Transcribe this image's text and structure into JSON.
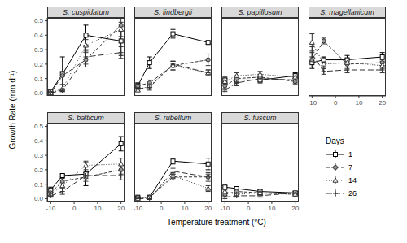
{
  "y_label": "Growth Rate (mm d⁻¹)",
  "x_label": "Temperature treatment (°C)",
  "legend_title": "Days",
  "chart_data": [
    {
      "type": "line",
      "title": "S. cuspidatum",
      "tick_labels": "y",
      "x": [
        -10,
        -5,
        5,
        20
      ],
      "xlim": [
        -11.5,
        21.5
      ],
      "xticks": [
        -10,
        0,
        10,
        20
      ],
      "ylim": [
        -0.02,
        0.52
      ],
      "yticks": [
        {
          "value": 0,
          "label": "0.0"
        },
        {
          "value": 0.1,
          "label": "0.1"
        },
        {
          "value": 0.2,
          "label": "0.2"
        },
        {
          "value": 0.3,
          "label": "0.3"
        },
        {
          "value": 0.4,
          "label": "0.4"
        },
        {
          "value": 0.5,
          "label": "0.5"
        }
      ],
      "series": [
        {
          "name": "1",
          "color": "#000000",
          "marker": "square",
          "line_style": "solid",
          "values": [
            0.01,
            0.13,
            0.4,
            0.36
          ],
          "errors": [
            0.01,
            0.12,
            0.07,
            0.1
          ]
        },
        {
          "name": "7",
          "color": "#333333",
          "marker": "circle",
          "line_style": "dashed",
          "values": [
            0.0,
            0.12,
            0.23,
            0.47
          ],
          "errors": [
            0.01,
            0.03,
            0.05,
            0.08
          ]
        },
        {
          "name": "14",
          "color": "#333333",
          "marker": "triangle",
          "line_style": "dotted",
          "values": [
            0.0,
            0.03,
            0.33,
            0.44
          ],
          "errors": [
            0.01,
            0.03,
            0.04,
            0.05
          ]
        },
        {
          "name": "26",
          "color": "#333333",
          "marker": "plus",
          "line_style": "longdash",
          "values": [
            0.0,
            0.02,
            0.25,
            0.28
          ],
          "errors": [
            0.01,
            0.01,
            0.05,
            0.04
          ]
        }
      ]
    },
    {
      "type": "line",
      "title": "S. lindbergii",
      "tick_labels": false,
      "x": [
        -10,
        -5,
        5,
        20
      ],
      "xlim": [
        -11.5,
        21.5
      ],
      "xticks": [
        -10,
        0,
        10,
        20
      ],
      "ylim": [
        -0.02,
        0.52
      ],
      "yticks": [
        {
          "value": 0,
          "label": "0.0"
        },
        {
          "value": 0.1,
          "label": "0.1"
        },
        {
          "value": 0.2,
          "label": "0.2"
        },
        {
          "value": 0.3,
          "label": "0.3"
        },
        {
          "value": 0.4,
          "label": "0.4"
        },
        {
          "value": 0.5,
          "label": "0.5"
        }
      ],
      "series": [
        {
          "name": "1",
          "color": "#000000",
          "marker": "square",
          "line_style": "solid",
          "values": [
            0.05,
            0.21,
            0.41,
            0.35
          ],
          "errors": [
            0.02,
            0.04,
            0.03,
            0.01
          ]
        },
        {
          "name": "7",
          "color": "#333333",
          "marker": "circle",
          "line_style": "dashed",
          "values": [
            0.05,
            0.07,
            0.19,
            0.23
          ],
          "errors": [
            0.02,
            0.02,
            0.03,
            0.04
          ]
        },
        {
          "name": "14",
          "color": "#333333",
          "marker": "triangle",
          "line_style": "dotted",
          "values": [
            0.02,
            0.05,
            0.19,
            0.14
          ],
          "errors": [
            0.01,
            0.02,
            0.03,
            0.02
          ]
        },
        {
          "name": "26",
          "color": "#333333",
          "marker": "plus",
          "line_style": "longdash",
          "values": [
            0.03,
            0.04,
            0.2,
            0.14
          ],
          "errors": [
            0.01,
            0.02,
            0.02,
            0.02
          ]
        }
      ]
    },
    {
      "type": "line",
      "title": "S. papillosum",
      "tick_labels": false,
      "x": [
        -10,
        -5,
        5,
        20
      ],
      "xlim": [
        -11.5,
        21.5
      ],
      "xticks": [
        -10,
        0,
        10,
        20
      ],
      "ylim": [
        -0.02,
        0.52
      ],
      "yticks": [
        {
          "value": 0,
          "label": "0.0"
        },
        {
          "value": 0.1,
          "label": "0.1"
        },
        {
          "value": 0.2,
          "label": "0.2"
        },
        {
          "value": 0.3,
          "label": "0.3"
        },
        {
          "value": 0.4,
          "label": "0.4"
        },
        {
          "value": 0.5,
          "label": "0.5"
        }
      ],
      "series": [
        {
          "name": "1",
          "color": "#000000",
          "marker": "square",
          "line_style": "solid",
          "values": [
            0.09,
            0.09,
            0.09,
            0.12
          ],
          "errors": [
            0.02,
            0.02,
            0.02,
            0.02
          ]
        },
        {
          "name": "7",
          "color": "#333333",
          "marker": "circle",
          "line_style": "dashed",
          "values": [
            0.05,
            0.1,
            0.11,
            0.08
          ],
          "errors": [
            0.02,
            0.02,
            0.02,
            0.02
          ]
        },
        {
          "name": "14",
          "color": "#333333",
          "marker": "triangle",
          "line_style": "dotted",
          "values": [
            0.08,
            0.12,
            0.13,
            0.11
          ],
          "errors": [
            0.02,
            0.02,
            0.02,
            0.02
          ]
        },
        {
          "name": "26",
          "color": "#333333",
          "marker": "plus",
          "line_style": "longdash",
          "values": [
            0.02,
            0.07,
            0.1,
            0.09
          ],
          "errors": [
            0.01,
            0.02,
            0.02,
            0.02
          ]
        }
      ]
    },
    {
      "type": "line",
      "title": "S. magellanicum",
      "tick_labels": "x",
      "x": [
        -10,
        -5,
        5,
        20
      ],
      "xlim": [
        -11.5,
        21.5
      ],
      "xticks": [
        -10,
        0,
        10,
        20
      ],
      "ylim": [
        -0.02,
        0.52
      ],
      "yticks": [
        {
          "value": 0,
          "label": "0.0"
        },
        {
          "value": 0.1,
          "label": "0.1"
        },
        {
          "value": 0.2,
          "label": "0.2"
        },
        {
          "value": 0.3,
          "label": "0.3"
        },
        {
          "value": 0.4,
          "label": "0.4"
        },
        {
          "value": 0.5,
          "label": "0.5"
        }
      ],
      "series": [
        {
          "name": "1",
          "color": "#000000",
          "marker": "square",
          "line_style": "solid",
          "values": [
            0.21,
            0.23,
            0.23,
            0.25
          ],
          "errors": [
            0.04,
            0.02,
            0.03,
            0.03
          ]
        },
        {
          "name": "7",
          "color": "#333333",
          "marker": "circle",
          "line_style": "dashed",
          "values": [
            0.23,
            0.36,
            0.2,
            0.21
          ],
          "errors": [
            0.05,
            0.02,
            0.03,
            0.02
          ]
        },
        {
          "name": "14",
          "color": "#333333",
          "marker": "triangle",
          "line_style": "dotted",
          "values": [
            0.35,
            0.2,
            0.21,
            0.19
          ],
          "errors": [
            0.06,
            0.03,
            0.03,
            0.02
          ]
        },
        {
          "name": "26",
          "color": "#333333",
          "marker": "plus",
          "line_style": "longdash",
          "values": [
            0.27,
            0.15,
            0.16,
            0.16
          ],
          "errors": [
            0.05,
            0.02,
            0.02,
            0.02
          ]
        }
      ]
    },
    {
      "type": "line",
      "title": "S. balticum",
      "x": [
        -10,
        -5,
        5,
        20
      ],
      "xlim": [
        -11.5,
        21.5
      ],
      "xticks": [
        -10,
        0,
        10,
        20
      ],
      "ylim": [
        -0.02,
        0.52
      ],
      "yticks": [
        {
          "value": 0,
          "label": "0.0"
        },
        {
          "value": 0.1,
          "label": "0.1"
        },
        {
          "value": 0.2,
          "label": "0.2"
        },
        {
          "value": 0.3,
          "label": "0.3"
        },
        {
          "value": 0.4,
          "label": "0.4"
        },
        {
          "value": 0.5,
          "label": "0.5"
        }
      ],
      "series": [
        {
          "name": "1",
          "color": "#000000",
          "marker": "square",
          "line_style": "solid",
          "values": [
            0.06,
            0.16,
            0.17,
            0.38
          ],
          "errors": [
            0.02,
            0.01,
            0.08,
            0.05
          ]
        },
        {
          "name": "7",
          "color": "#333333",
          "marker": "circle",
          "line_style": "dashed",
          "values": [
            0.04,
            0.12,
            0.15,
            0.2
          ],
          "errors": [
            0.02,
            0.02,
            0.03,
            0.03
          ]
        },
        {
          "name": "14",
          "color": "#333333",
          "marker": "triangle",
          "line_style": "dotted",
          "values": [
            0.03,
            0.09,
            0.23,
            0.24
          ],
          "errors": [
            0.01,
            0.02,
            0.03,
            0.04
          ]
        },
        {
          "name": "26",
          "color": "#333333",
          "marker": "plus",
          "line_style": "longdash",
          "values": [
            0.02,
            0.05,
            0.16,
            0.16
          ],
          "errors": [
            0.01,
            0.02,
            0.02,
            0.03
          ]
        }
      ]
    },
    {
      "type": "line",
      "title": "S. rubellum",
      "tick_labels": "x",
      "x": [
        -10,
        -5,
        5,
        20
      ],
      "xlim": [
        -11.5,
        21.5
      ],
      "xticks": [
        -10,
        0,
        10,
        20
      ],
      "ylim": [
        -0.02,
        0.52
      ],
      "yticks": [
        {
          "value": 0,
          "label": "0.0"
        },
        {
          "value": 0.1,
          "label": "0.1"
        },
        {
          "value": 0.2,
          "label": "0.2"
        },
        {
          "value": 0.3,
          "label": "0.3"
        },
        {
          "value": 0.4,
          "label": "0.4"
        },
        {
          "value": 0.5,
          "label": "0.5"
        }
      ],
      "series": [
        {
          "name": "1",
          "color": "#000000",
          "marker": "square",
          "line_style": "solid",
          "values": [
            0.01,
            0.01,
            0.26,
            0.24
          ],
          "errors": [
            0.005,
            0.005,
            0.02,
            0.04
          ]
        },
        {
          "name": "7",
          "color": "#333333",
          "marker": "circle",
          "line_style": "dashed",
          "values": [
            0.01,
            0.01,
            0.15,
            0.15
          ],
          "errors": [
            0.005,
            0.005,
            0.02,
            0.03
          ]
        },
        {
          "name": "14",
          "color": "#333333",
          "marker": "triangle",
          "line_style": "dotted",
          "values": [
            0.0,
            0.01,
            0.16,
            0.07
          ],
          "errors": [
            0.005,
            0.005,
            0.02,
            0.02
          ]
        },
        {
          "name": "26",
          "color": "#333333",
          "marker": "plus",
          "line_style": "longdash",
          "values": [
            0.0,
            0.0,
            0.19,
            0.15
          ],
          "errors": [
            0.005,
            0.005,
            0.02,
            0.02
          ]
        }
      ]
    },
    {
      "type": "line",
      "title": "S. fuscum",
      "tick_labels": "x",
      "x": [
        -10,
        -5,
        5,
        20
      ],
      "xlim": [
        -11.5,
        21.5
      ],
      "xticks": [
        -10,
        0,
        10,
        20
      ],
      "ylim": [
        -0.02,
        0.52
      ],
      "yticks": [
        {
          "value": 0,
          "label": "0.0"
        },
        {
          "value": 0.1,
          "label": "0.1"
        },
        {
          "value": 0.2,
          "label": "0.2"
        },
        {
          "value": 0.3,
          "label": "0.3"
        },
        {
          "value": 0.4,
          "label": "0.4"
        },
        {
          "value": 0.5,
          "label": "0.5"
        }
      ],
      "series": [
        {
          "name": "1",
          "color": "#000000",
          "marker": "square",
          "line_style": "solid",
          "values": [
            0.08,
            0.07,
            0.05,
            0.04
          ],
          "errors": [
            0.01,
            0.01,
            0.01,
            0.01
          ]
        },
        {
          "name": "7",
          "color": "#333333",
          "marker": "circle",
          "line_style": "dashed",
          "values": [
            0.03,
            0.05,
            0.04,
            0.03
          ],
          "errors": [
            0.01,
            0.01,
            0.01,
            0.01
          ]
        },
        {
          "name": "14",
          "color": "#333333",
          "marker": "triangle",
          "line_style": "dotted",
          "values": [
            0.05,
            0.03,
            0.04,
            0.03
          ],
          "errors": [
            0.01,
            0.01,
            0.01,
            0.01
          ]
        },
        {
          "name": "26",
          "color": "#333333",
          "marker": "plus",
          "line_style": "longdash",
          "values": [
            0.01,
            0.02,
            0.02,
            0.04
          ],
          "errors": [
            0.01,
            0.01,
            0.01,
            0.01
          ]
        }
      ]
    }
  ]
}
